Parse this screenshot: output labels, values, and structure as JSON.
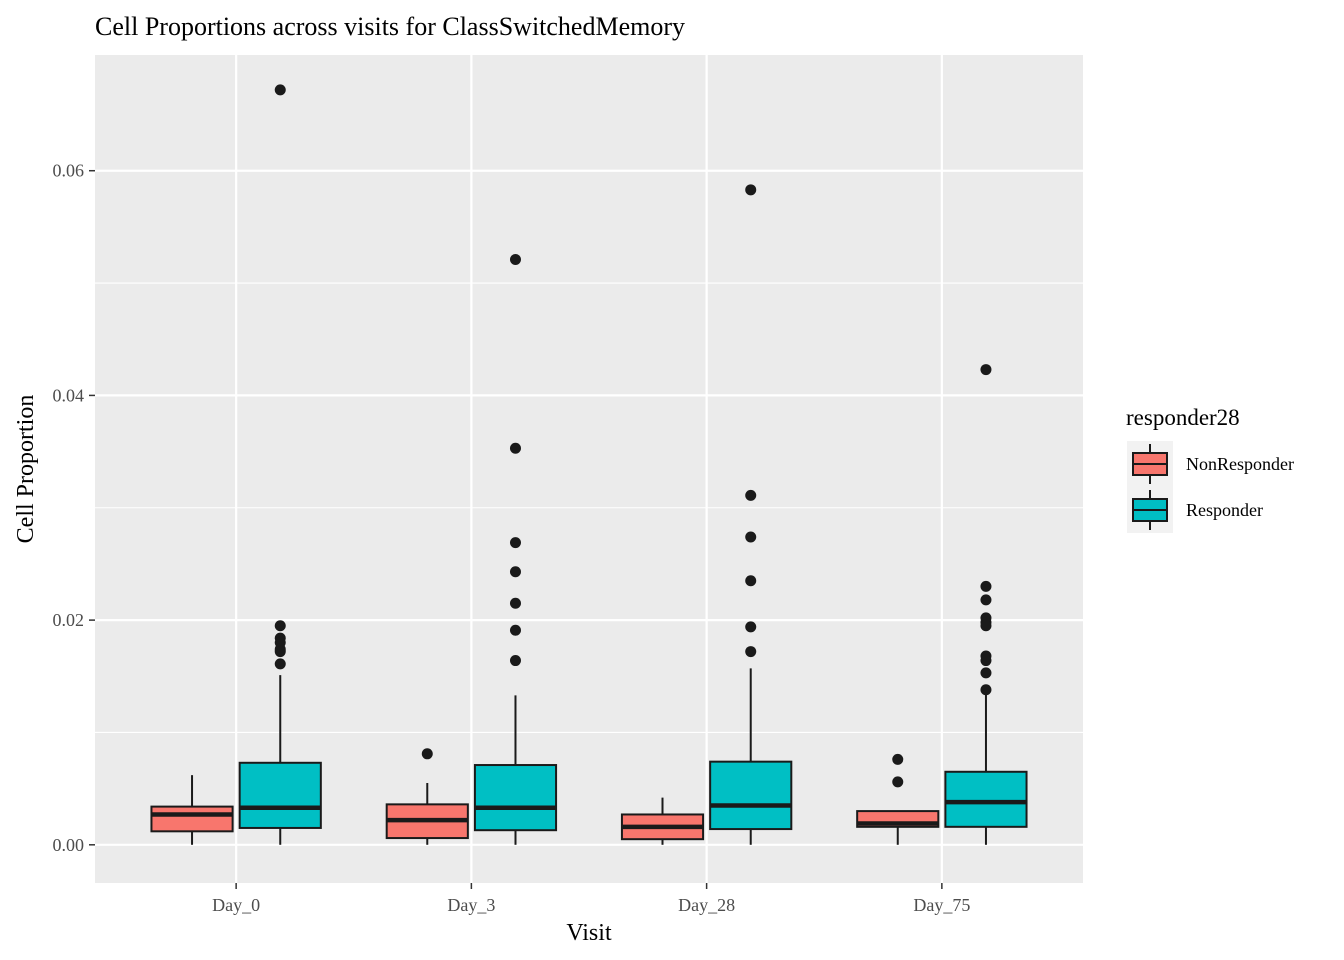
{
  "chart_data": {
    "type": "boxplot",
    "title": "Cell Proportions across visits for ClassSwitchedMemory",
    "xlabel": "Visit",
    "ylabel": "Cell Proportion",
    "categories": [
      "Day_0",
      "Day_3",
      "Day_28",
      "Day_75"
    ],
    "ylim": [
      -0.0034,
      0.0703
    ],
    "y_ticks": [
      0.0,
      0.02,
      0.04,
      0.06
    ],
    "y_tick_labels": [
      "0.00",
      "0.02",
      "0.04",
      "0.06"
    ],
    "grid": true,
    "legend": {
      "title": "responder28",
      "position": "right"
    },
    "series": [
      {
        "name": "NonResponder",
        "color": "#F8766D",
        "boxes": [
          {
            "category": "Day_0",
            "min": 0.0,
            "q1": 0.0012,
            "median": 0.0027,
            "q3": 0.0034,
            "max": 0.0062,
            "outliers": []
          },
          {
            "category": "Day_3",
            "min": 0.0,
            "q1": 0.0006,
            "median": 0.0022,
            "q3": 0.0036,
            "max": 0.0055,
            "outliers": [
              0.0081
            ]
          },
          {
            "category": "Day_28",
            "min": 0.0,
            "q1": 0.0005,
            "median": 0.0016,
            "q3": 0.0027,
            "max": 0.0042,
            "outliers": []
          },
          {
            "category": "Day_75",
            "min": 0.0,
            "q1": 0.0016,
            "median": 0.0019,
            "q3": 0.003,
            "max": 0.003,
            "outliers": [
              0.0076,
              0.0056
            ]
          }
        ]
      },
      {
        "name": "Responder",
        "color": "#00BFC4",
        "boxes": [
          {
            "category": "Day_0",
            "min": 0.0,
            "q1": 0.0015,
            "median": 0.0033,
            "q3": 0.0073,
            "max": 0.0151,
            "outliers": [
              0.0672,
              0.0195,
              0.0184,
              0.018,
              0.0174,
              0.0172,
              0.0161
            ]
          },
          {
            "category": "Day_3",
            "min": 0.0,
            "q1": 0.0013,
            "median": 0.0033,
            "q3": 0.0071,
            "max": 0.0133,
            "outliers": [
              0.0521,
              0.0353,
              0.0269,
              0.0243,
              0.0215,
              0.0191,
              0.0164
            ]
          },
          {
            "category": "Day_28",
            "min": 0.0,
            "q1": 0.0014,
            "median": 0.0035,
            "q3": 0.0074,
            "max": 0.0157,
            "outliers": [
              0.0583,
              0.0311,
              0.0274,
              0.0235,
              0.0194,
              0.0172
            ]
          },
          {
            "category": "Day_75",
            "min": 0.0,
            "q1": 0.0016,
            "median": 0.0038,
            "q3": 0.0065,
            "max": 0.0136,
            "outliers": [
              0.0423,
              0.023,
              0.0218,
              0.0202,
              0.0198,
              0.0195,
              0.0168,
              0.0164,
              0.0153,
              0.0138
            ]
          }
        ]
      }
    ]
  }
}
